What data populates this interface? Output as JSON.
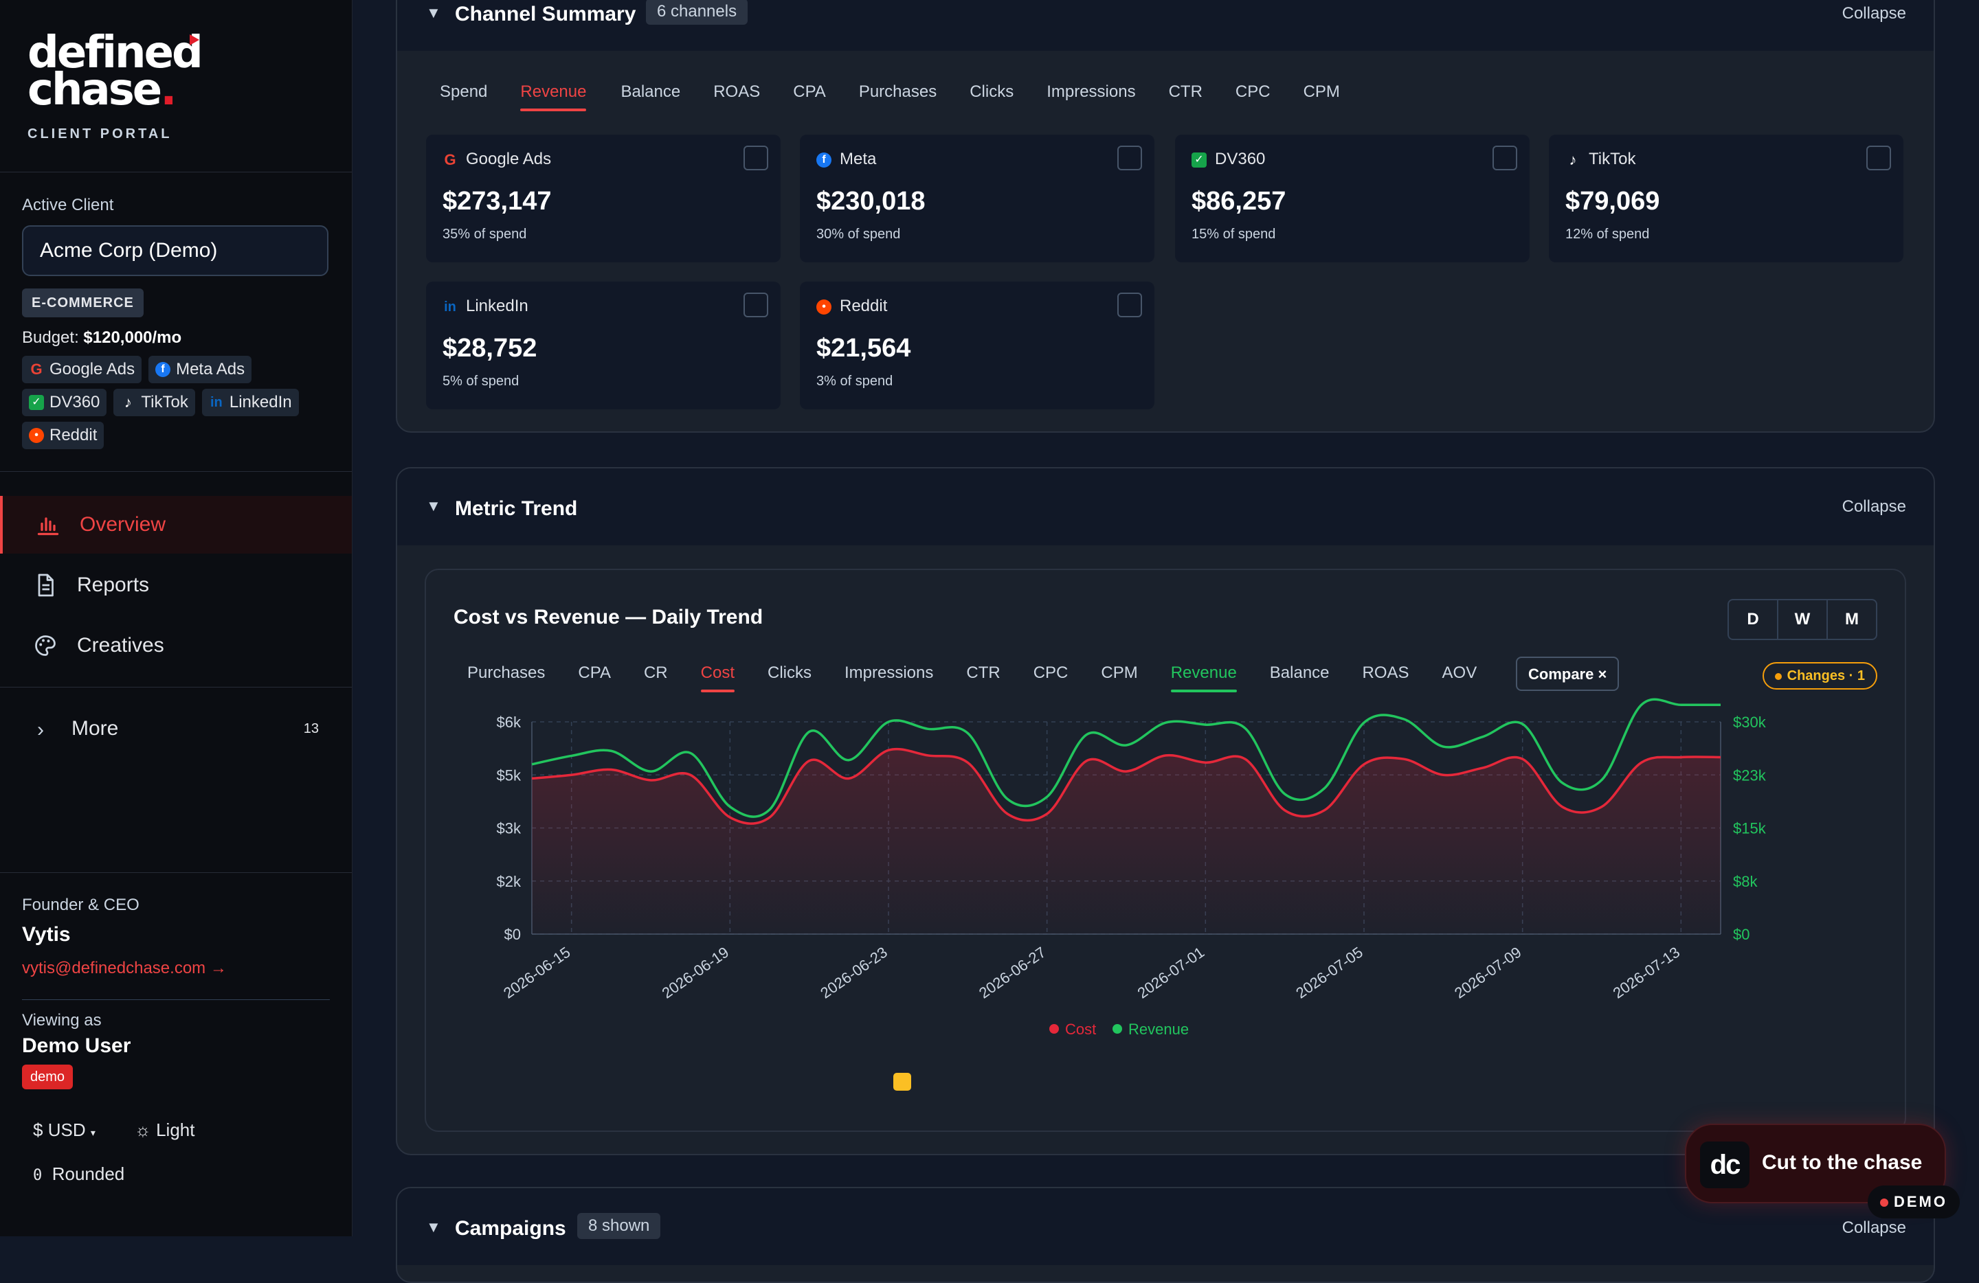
{
  "brand": {
    "logo_line1": "defined",
    "logo_line2": "chase",
    "logo_dot": ".",
    "portal": "CLIENT PORTAL"
  },
  "client": {
    "label": "Active Client",
    "selected": "Acme Corp (Demo)",
    "vertical": "E-COMMERCE",
    "budget_label": "Budget:",
    "budget_value": "$120,000/mo",
    "channels": [
      "Google Ads",
      "Meta Ads",
      "DV360",
      "TikTok",
      "LinkedIn",
      "Reddit"
    ]
  },
  "nav": {
    "items": [
      {
        "label": "Overview",
        "icon": "bar-chart-icon",
        "active": true
      },
      {
        "label": "Reports",
        "icon": "document-icon",
        "active": false
      },
      {
        "label": "Creatives",
        "icon": "palette-icon",
        "active": false
      }
    ],
    "more_label": "More",
    "more_count": "13"
  },
  "user": {
    "role": "Founder & CEO",
    "name": "Vytis",
    "email": "vytis@definedchase.com →",
    "viewing_label": "Viewing as",
    "viewing_user": "Demo User",
    "viewing_badge": "demo"
  },
  "settings": {
    "currency": "USD",
    "theme": "Light",
    "rounding_icon": "0",
    "rounding": "Rounded"
  },
  "channel_summary": {
    "title": "Channel Summary",
    "badge": "6 channels",
    "collapse": "Collapse",
    "tabs": [
      "Spend",
      "Revenue",
      "Balance",
      "ROAS",
      "CPA",
      "Purchases",
      "Clicks",
      "Impressions",
      "CTR",
      "CPC",
      "CPM"
    ],
    "active_tab": "Revenue",
    "cards": [
      {
        "name": "Google Ads",
        "value": "$273,147",
        "share": "35% of spend",
        "icon": "google-icon"
      },
      {
        "name": "Meta",
        "value": "$230,018",
        "share": "30% of spend",
        "icon": "meta-icon"
      },
      {
        "name": "DV360",
        "value": "$86,257",
        "share": "15% of spend",
        "icon": "dv360-icon"
      },
      {
        "name": "TikTok",
        "value": "$79,069",
        "share": "12% of spend",
        "icon": "tiktok-icon"
      },
      {
        "name": "LinkedIn",
        "value": "$28,752",
        "share": "5% of spend",
        "icon": "linkedin-icon"
      },
      {
        "name": "Reddit",
        "value": "$21,564",
        "share": "3% of spend",
        "icon": "reddit-icon"
      }
    ]
  },
  "metric_trend": {
    "title": "Metric Trend",
    "collapse": "Collapse",
    "chart_title": "Cost vs Revenue — Daily Trend",
    "granularity": [
      "D",
      "W",
      "M"
    ],
    "tabs": [
      "Purchases",
      "CPA",
      "CR",
      "Cost",
      "Clicks",
      "Impressions",
      "CTR",
      "CPC",
      "CPM",
      "Revenue",
      "Balance",
      "ROAS",
      "AOV"
    ],
    "compare_label": "Compare ×",
    "changes_label": "Changes · 1"
  },
  "campaigns": {
    "title": "Campaigns",
    "badge": "8 shown",
    "collapse": "Collapse"
  },
  "fab": {
    "logo": "dc",
    "label": "Cut to the chase"
  },
  "demo_pill": "DEMO",
  "colors": {
    "cost": "#e5283a",
    "revenue": "#22c55e",
    "accent": "#ef4444",
    "bg": "#111827"
  },
  "chart_data": {
    "type": "line",
    "x": [
      "2026-06-14",
      "2026-06-15",
      "2026-06-16",
      "2026-06-17",
      "2026-06-18",
      "2026-06-19",
      "2026-06-20",
      "2026-06-21",
      "2026-06-22",
      "2026-06-23",
      "2026-06-24",
      "2026-06-25",
      "2026-06-26",
      "2026-06-27",
      "2026-06-28",
      "2026-06-29",
      "2026-06-30",
      "2026-07-01",
      "2026-07-02",
      "2026-07-03",
      "2026-07-04",
      "2026-07-05",
      "2026-07-06",
      "2026-07-07",
      "2026-07-08",
      "2026-07-09",
      "2026-07-10",
      "2026-07-11",
      "2026-07-12",
      "2026-07-13",
      "2026-07-14"
    ],
    "x_ticks": [
      "2026-06-15",
      "2026-06-19",
      "2026-06-23",
      "2026-06-27",
      "2026-07-01",
      "2026-07-05",
      "2026-07-09",
      "2026-07-13"
    ],
    "series": [
      {
        "name": "Cost",
        "axis": "left",
        "values": [
          4400,
          4500,
          4650,
          4350,
          4500,
          3300,
          3300,
          4900,
          4400,
          5200,
          5050,
          4850,
          3400,
          3400,
          4900,
          4600,
          5050,
          4850,
          4950,
          3500,
          3500,
          4800,
          4950,
          4500,
          4700,
          4950,
          3600,
          3600,
          4850,
          5000,
          5000
        ]
      },
      {
        "name": "Revenue",
        "axis": "right",
        "values": [
          24000,
          25200,
          25900,
          23000,
          25600,
          18000,
          17600,
          28600,
          24600,
          30000,
          29000,
          28400,
          19100,
          19400,
          28200,
          26700,
          29900,
          29600,
          29100,
          19800,
          20600,
          29900,
          30400,
          26500,
          27900,
          29700,
          21400,
          21800,
          32400,
          32400,
          32400
        ]
      }
    ],
    "y_left": {
      "ticks": [
        "$0",
        "$2k",
        "$3k",
        "$5k",
        "$6k"
      ],
      "max": 6000
    },
    "y_right": {
      "ticks": [
        "$0",
        "$8k",
        "$15k",
        "$23k",
        "$30k"
      ],
      "max": 30000
    },
    "legend": [
      "Cost",
      "Revenue"
    ],
    "legend_position": "bottom",
    "grid": true
  }
}
